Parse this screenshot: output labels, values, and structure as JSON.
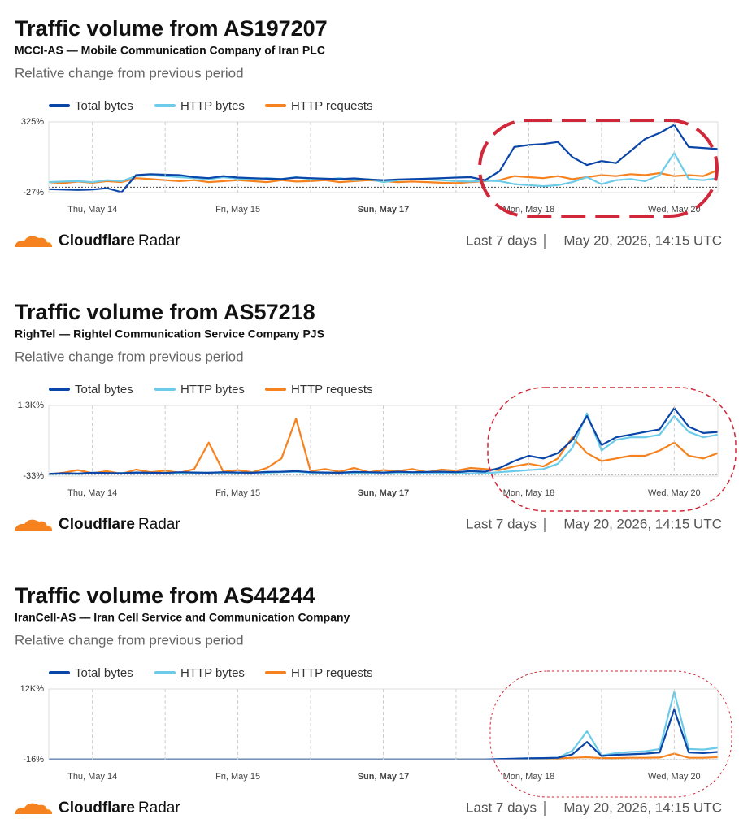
{
  "chart_data": [
    {
      "type": "line",
      "title": "Traffic volume from AS197207",
      "subtitle": "MCCI-AS — Mobile Communication Company of Iran PLC",
      "caption": "Relative change from previous period",
      "categories": [
        null,
        null,
        null,
        "Thu, May 14",
        null,
        null,
        null,
        null,
        null,
        null,
        null,
        null,
        null,
        "Fri, May 15",
        null,
        null,
        null,
        null,
        null,
        null,
        null,
        null,
        null,
        "Sun, May 17",
        null,
        null,
        null,
        null,
        null,
        null,
        null,
        null,
        null,
        "Mon, May 18",
        null,
        null,
        null,
        null,
        null,
        null,
        null,
        null,
        null,
        "Wed, May 20",
        null,
        null,
        null
      ],
      "series": [
        {
          "name": "Total bytes",
          "color": "#0a45a8",
          "values": [
            -10,
            -12,
            -14,
            -12,
            -5,
            -25,
            60,
            65,
            62,
            60,
            50,
            45,
            55,
            48,
            45,
            42,
            40,
            48,
            45,
            42,
            40,
            44,
            38,
            35,
            38,
            40,
            42,
            45,
            48,
            50,
            35,
            80,
            200,
            210,
            215,
            225,
            150,
            110,
            130,
            120,
            180,
            240,
            270,
            310,
            200,
            195,
            190
          ]
        },
        {
          "name": "HTTP bytes",
          "color": "#6ccbe8",
          "values": [
            25,
            28,
            30,
            25,
            35,
            30,
            55,
            60,
            55,
            50,
            45,
            40,
            50,
            42,
            38,
            45,
            40,
            50,
            40,
            38,
            45,
            35,
            40,
            25,
            35,
            40,
            38,
            35,
            30,
            28,
            32,
            30,
            15,
            10,
            5,
            10,
            25,
            50,
            15,
            35,
            40,
            30,
            60,
            170,
            40,
            35,
            45
          ]
        },
        {
          "name": "HTTP requests",
          "color": "#f6821f",
          "values": [
            25,
            20,
            28,
            22,
            30,
            25,
            45,
            40,
            35,
            30,
            35,
            25,
            30,
            35,
            30,
            25,
            35,
            28,
            30,
            35,
            25,
            30,
            35,
            30,
            25,
            28,
            25,
            22,
            20,
            25,
            30,
            35,
            55,
            50,
            45,
            55,
            40,
            50,
            60,
            55,
            65,
            60,
            70,
            55,
            60,
            55,
            85
          ]
        }
      ],
      "ylim": [
        -27,
        325
      ],
      "yticks": [
        {
          "value": 325,
          "label": "325%"
        },
        {
          "value": -27,
          "label": "-27%"
        }
      ],
      "brand": "Cloudflare",
      "product": "Radar",
      "period": "Last 7 days",
      "timestamp": "May 20, 2026, 14:15 UTC"
    },
    {
      "type": "line",
      "title": "Traffic volume from AS57218",
      "subtitle": "RighTel — Rightel Communication Service Company PJS",
      "caption": "Relative change from previous period",
      "categories": [
        null,
        null,
        null,
        "Thu, May 14",
        null,
        null,
        null,
        null,
        null,
        null,
        null,
        null,
        null,
        "Fri, May 15",
        null,
        null,
        null,
        null,
        null,
        null,
        null,
        null,
        null,
        "Sun, May 17",
        null,
        null,
        null,
        null,
        null,
        null,
        null,
        null,
        null,
        "Mon, May 18",
        null,
        null,
        null,
        null,
        null,
        null,
        null,
        null,
        null,
        "Wed, May 20",
        null,
        null,
        null
      ],
      "series": [
        {
          "name": "Total bytes",
          "color": "#0a45a8",
          "values": [
            10,
            20,
            15,
            30,
            25,
            20,
            35,
            30,
            25,
            40,
            35,
            30,
            40,
            35,
            30,
            45,
            50,
            60,
            40,
            35,
            30,
            45,
            40,
            35,
            50,
            40,
            45,
            50,
            40,
            60,
            50,
            120,
            250,
            350,
            300,
            400,
            650,
            1100,
            550,
            700,
            750,
            800,
            850,
            1250,
            900,
            780,
            800
          ]
        },
        {
          "name": "HTTP bytes",
          "color": "#6ccbe8",
          "values": [
            0,
            10,
            5,
            20,
            15,
            25,
            20,
            15,
            30,
            25,
            20,
            30,
            25,
            20,
            35,
            30,
            40,
            50,
            30,
            25,
            20,
            30,
            25,
            20,
            35,
            30,
            25,
            30,
            20,
            15,
            20,
            40,
            60,
            80,
            100,
            200,
            500,
            1150,
            450,
            650,
            700,
            700,
            750,
            1100,
            800,
            700,
            750
          ]
        },
        {
          "name": "HTTP requests",
          "color": "#f6821f",
          "values": [
            0,
            30,
            80,
            20,
            60,
            10,
            90,
            40,
            70,
            30,
            100,
            600,
            50,
            80,
            40,
            120,
            300,
            1050,
            60,
            100,
            50,
            120,
            40,
            80,
            60,
            100,
            40,
            90,
            70,
            120,
            100,
            80,
            150,
            200,
            150,
            300,
            700,
            400,
            250,
            300,
            350,
            350,
            450,
            600,
            350,
            300,
            400
          ]
        }
      ],
      "ylim": [
        -33,
        1300
      ],
      "yticks": [
        {
          "value": 1300,
          "label": "1.3K%"
        },
        {
          "value": -33,
          "label": "-33%"
        }
      ],
      "brand": "Cloudflare",
      "product": "Radar",
      "period": "Last 7 days",
      "timestamp": "May 20, 2026, 14:15 UTC"
    },
    {
      "type": "line",
      "title": "Traffic volume from AS44244",
      "subtitle": "IranCell-AS — Iran Cell Service and Communication Company",
      "caption": "Relative change from previous period",
      "categories": [
        null,
        null,
        null,
        "Thu, May 14",
        null,
        null,
        null,
        null,
        null,
        null,
        null,
        null,
        null,
        "Fri, May 15",
        null,
        null,
        null,
        null,
        null,
        null,
        null,
        null,
        null,
        "Sun, May 17",
        null,
        null,
        null,
        null,
        null,
        null,
        null,
        null,
        null,
        "Mon, May 18",
        null,
        null,
        null,
        null,
        null,
        null,
        null,
        null,
        null,
        "Wed, May 20",
        null,
        null,
        null
      ],
      "series": [
        {
          "name": "Total bytes",
          "color": "#0a45a8",
          "values": [
            0,
            0,
            0,
            0,
            0,
            0,
            0,
            0,
            0,
            0,
            0,
            0,
            0,
            0,
            0,
            0,
            0,
            0,
            0,
            0,
            0,
            0,
            0,
            0,
            0,
            0,
            0,
            0,
            0,
            0,
            0,
            100,
            150,
            200,
            250,
            300,
            900,
            3000,
            600,
            800,
            900,
            1000,
            1200,
            8500,
            1200,
            1100,
            1300
          ]
        },
        {
          "name": "HTTP bytes",
          "color": "#6ccbe8",
          "values": [
            0,
            0,
            0,
            0,
            0,
            0,
            0,
            0,
            0,
            0,
            0,
            0,
            0,
            0,
            0,
            0,
            0,
            0,
            0,
            0,
            0,
            0,
            0,
            0,
            0,
            0,
            0,
            0,
            0,
            0,
            0,
            100,
            150,
            200,
            250,
            300,
            1500,
            4800,
            700,
            1100,
            1300,
            1400,
            1800,
            11500,
            1800,
            1700,
            2000
          ]
        },
        {
          "name": "HTTP requests",
          "color": "#f6821f",
          "values": [
            0,
            0,
            0,
            0,
            0,
            0,
            0,
            0,
            0,
            0,
            0,
            0,
            0,
            0,
            0,
            0,
            0,
            0,
            0,
            0,
            0,
            0,
            0,
            0,
            0,
            0,
            0,
            0,
            0,
            0,
            0,
            50,
            100,
            150,
            150,
            200,
            300,
            400,
            250,
            250,
            300,
            300,
            350,
            1000,
            300,
            300,
            400
          ]
        }
      ],
      "ylim": [
        -16,
        12000
      ],
      "yticks": [
        {
          "value": 12000,
          "label": "12K%"
        },
        {
          "value": -16,
          "label": "-16%"
        }
      ],
      "brand": "Cloudflare",
      "product": "Radar",
      "period": "Last 7 days",
      "timestamp": "May 20, 2026, 14:15 UTC"
    }
  ]
}
